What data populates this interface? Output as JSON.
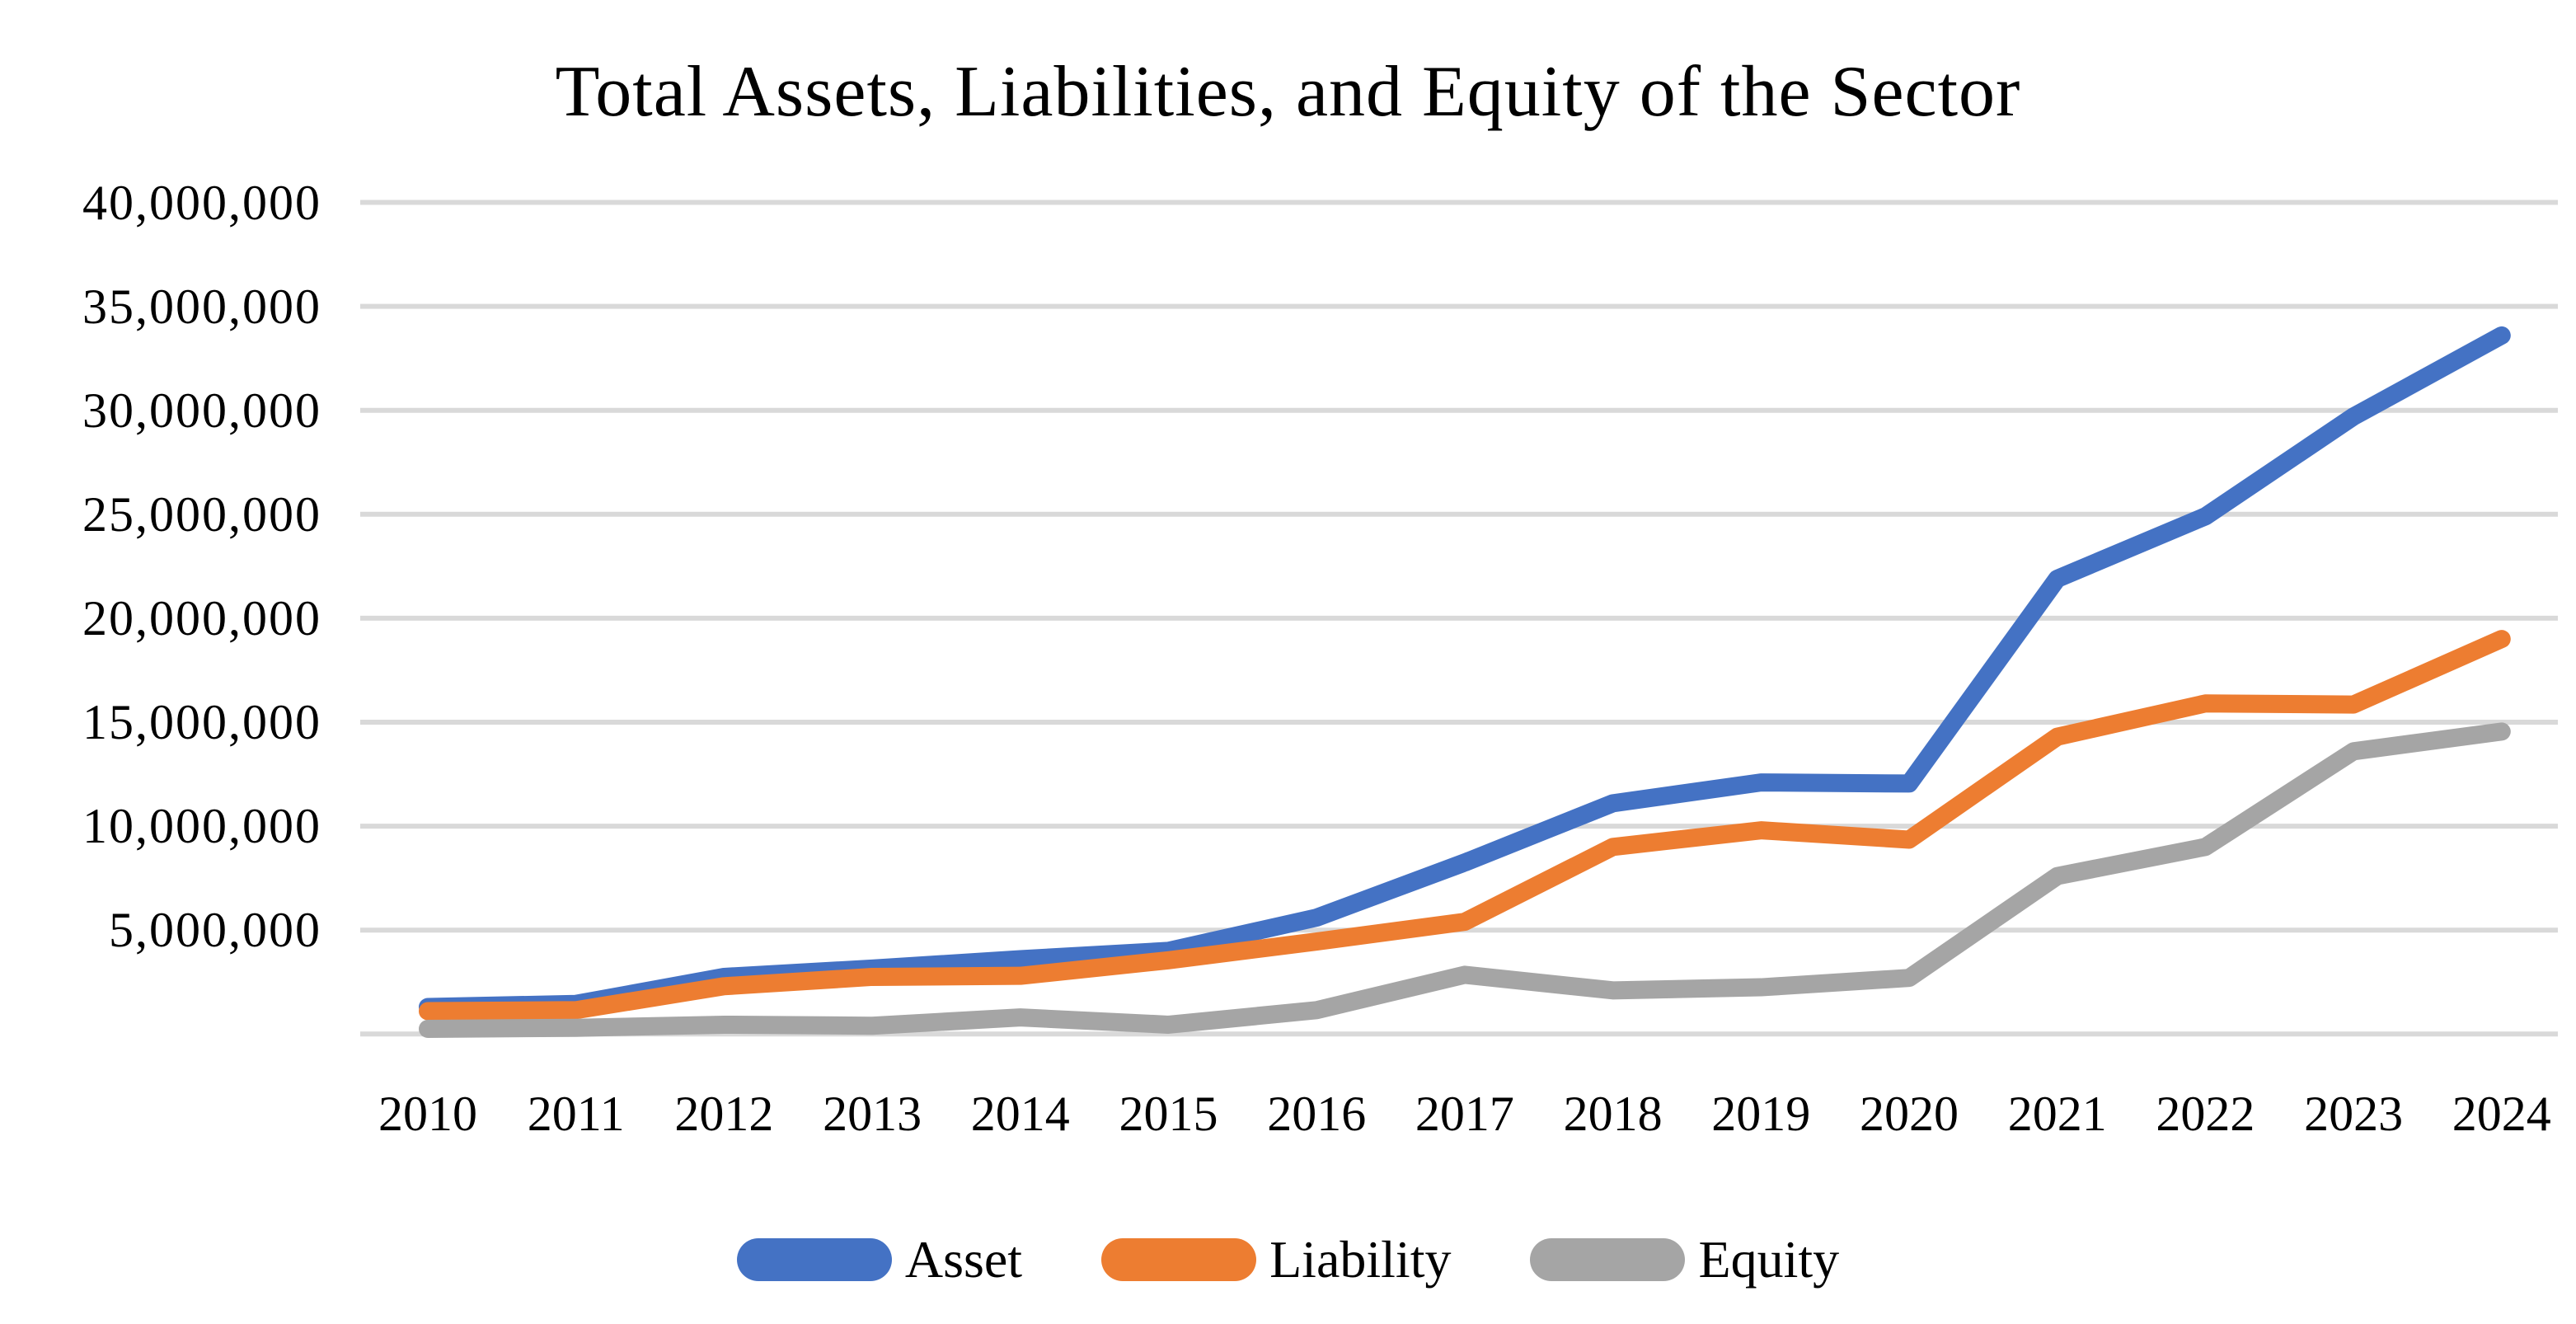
{
  "title": "Total Assets, Liabilities, and Equity of the Sector",
  "chart_data": {
    "type": "line",
    "x": [
      2010,
      2011,
      2012,
      2013,
      2014,
      2015,
      2016,
      2017,
      2018,
      2019,
      2020,
      2021,
      2022,
      2023,
      2024
    ],
    "series": [
      {
        "name": "Asset",
        "color": "#4472C4",
        "values": [
          1300000,
          1450000,
          2750000,
          3150000,
          3600000,
          4000000,
          5600000,
          8250000,
          11100000,
          12100000,
          12050000,
          21900000,
          24900000,
          29700000,
          33600000
        ]
      },
      {
        "name": "Liability",
        "color": "#ED7D31",
        "values": [
          1100000,
          1150000,
          2300000,
          2750000,
          2800000,
          3550000,
          4450000,
          5400000,
          9000000,
          9800000,
          9350000,
          14300000,
          15900000,
          15850000,
          19000000
        ]
      },
      {
        "name": "Equity",
        "color": "#A5A5A5",
        "values": [
          250000,
          300000,
          450000,
          400000,
          800000,
          450000,
          1150000,
          2850000,
          2100000,
          2250000,
          2700000,
          7600000,
          9000000,
          13600000,
          14550000
        ]
      }
    ],
    "title": "Total Assets, Liabilities, and Equity of the Sector",
    "xlabel": "",
    "ylabel": "",
    "ylim": [
      0,
      40000000
    ],
    "ytick_step": 5000000,
    "ytick_values": [
      40000000,
      35000000,
      30000000,
      25000000,
      20000000,
      15000000,
      10000000,
      5000000
    ],
    "ytick_labels": [
      "40,000,000",
      "35,000,000",
      "30,000,000",
      "25,000,000",
      "20,000,000",
      "15,000,000",
      "10,000,000",
      "5,000,000"
    ],
    "grid": true,
    "gridline_color": "#D9D9D9",
    "background_color": "#FFFFFF",
    "text_color": "#000000",
    "legend_position": "bottom"
  }
}
